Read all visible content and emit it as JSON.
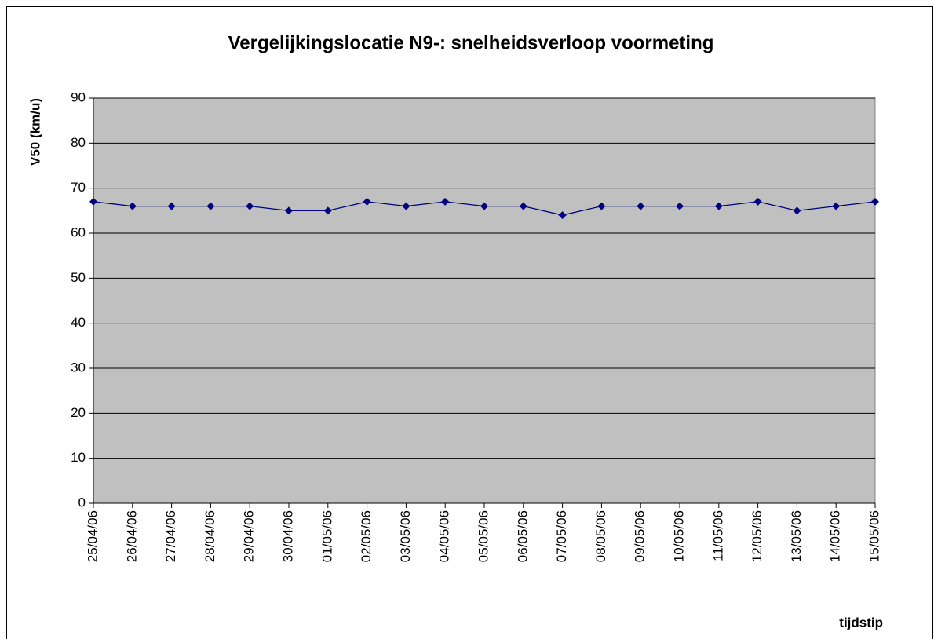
{
  "chart_data": {
    "type": "line",
    "title": "Vergelijkingslocatie N9-: snelheidsverloop voormeting",
    "y_label": "V50 (km/u)",
    "x_label": "tijdstip",
    "categories": [
      "25/04/06",
      "26/04/06",
      "27/04/06",
      "28/04/06",
      "29/04/06",
      "30/04/06",
      "01/05/06",
      "02/05/06",
      "03/05/06",
      "04/05/06",
      "05/05/06",
      "06/05/06",
      "07/05/06",
      "08/05/06",
      "09/05/06",
      "10/05/06",
      "11/05/06",
      "12/05/06",
      "13/05/06",
      "14/05/06",
      "15/05/06"
    ],
    "series": [
      {
        "color": "#000080",
        "values": [
          67,
          66,
          66,
          66,
          66,
          65,
          65,
          67,
          66,
          67,
          66,
          66,
          64,
          66,
          66,
          66,
          66,
          67,
          65,
          66,
          67
        ]
      }
    ],
    "ylim": [
      0,
      90
    ],
    "yticks": [
      0,
      10,
      20,
      30,
      40,
      50,
      60,
      70,
      80,
      90
    ],
    "grid": true,
    "plot_background": "#c0c0c0"
  }
}
